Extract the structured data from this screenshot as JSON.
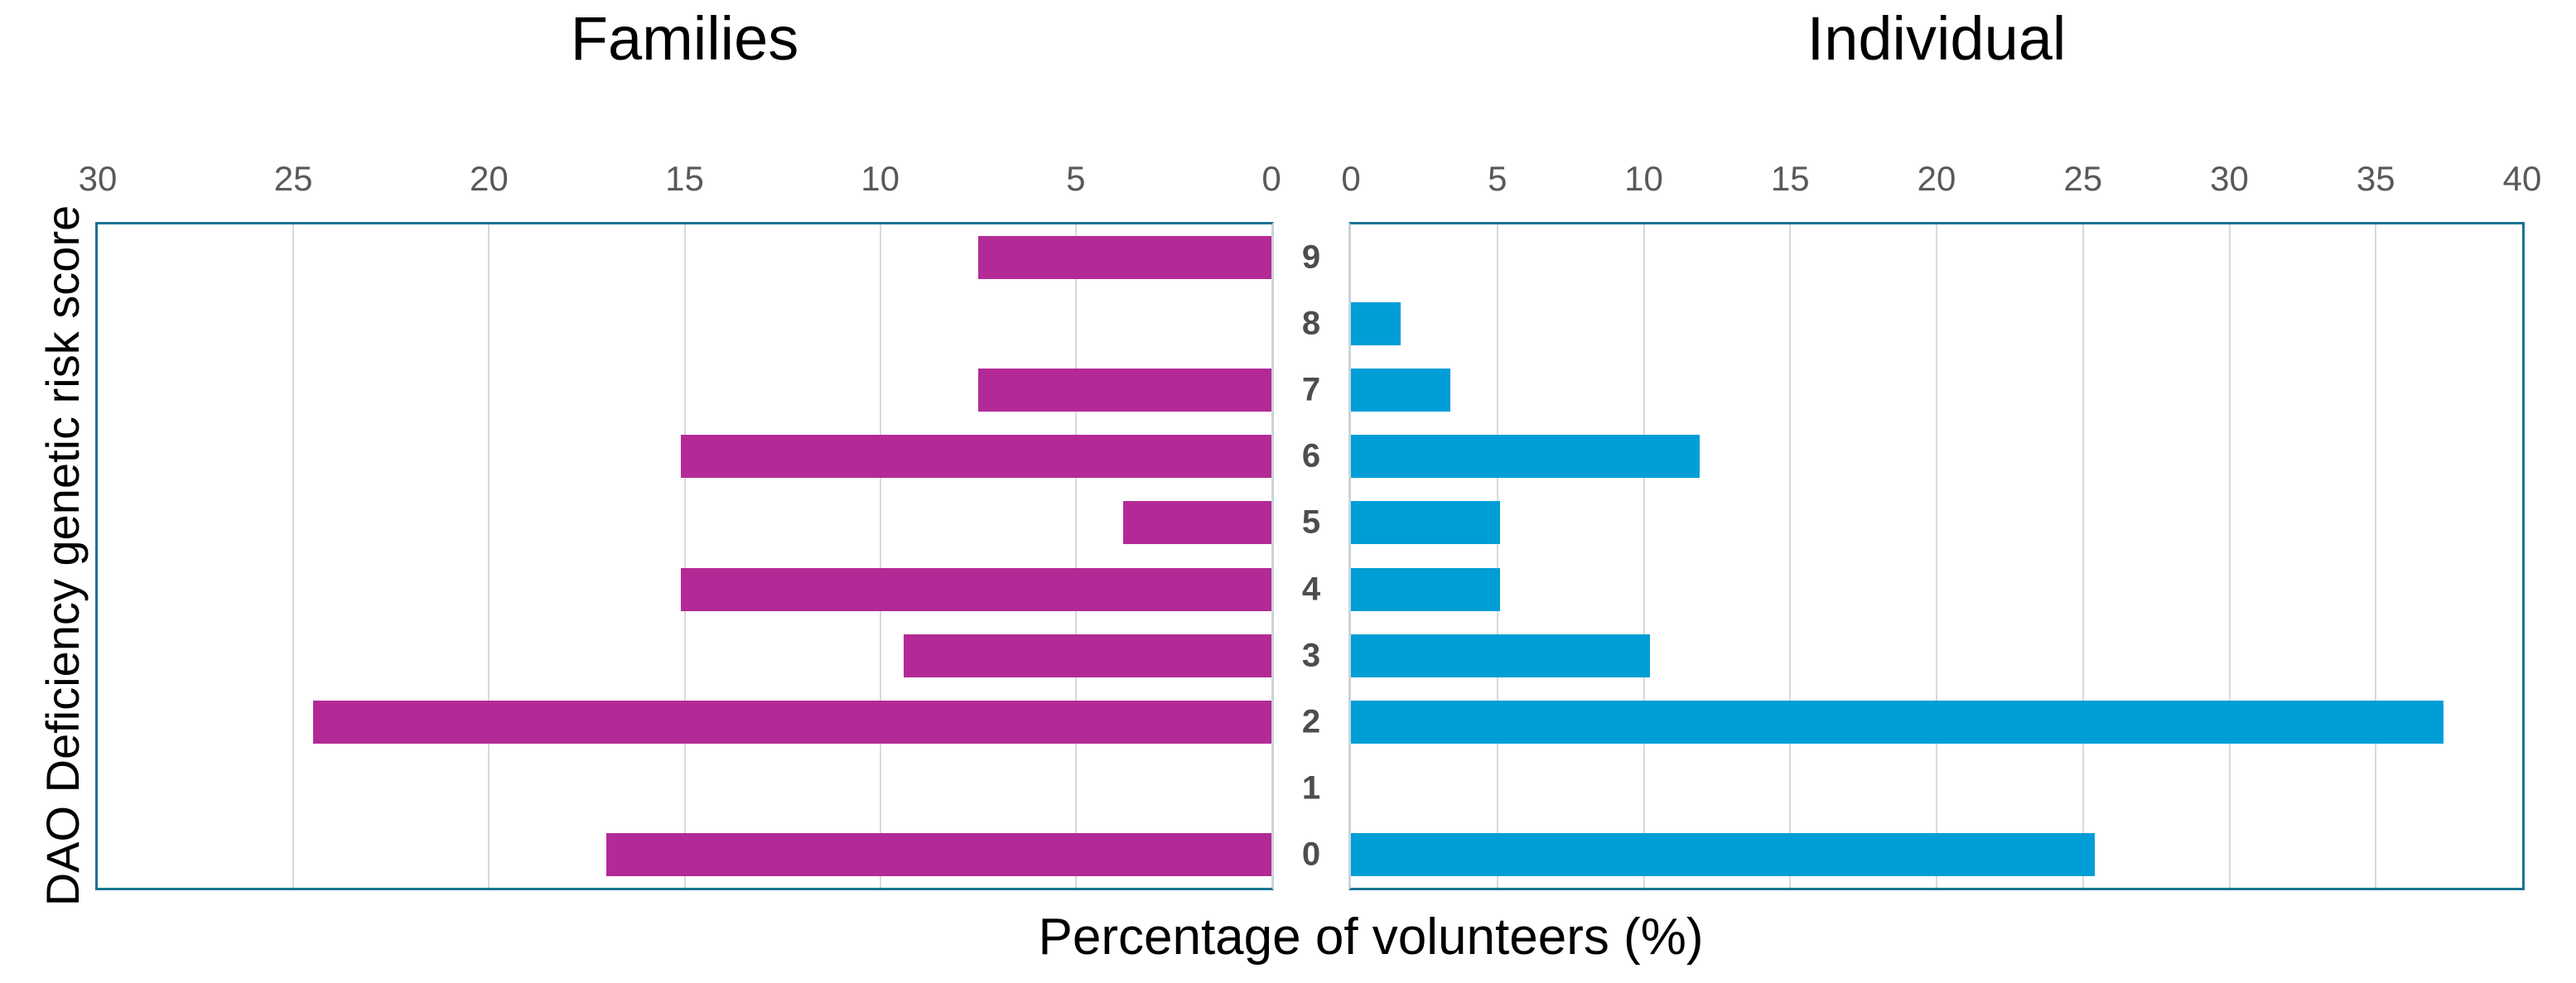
{
  "chart_data": {
    "type": "bar",
    "variant": "butterfly-horizontal",
    "title_left": "Families",
    "title_right": "Individual",
    "xlabel": "Percentage of volunteers (%)",
    "ylabel": "DAO Deficiency genetic risk score",
    "categories_top_to_bottom": [
      "9",
      "8",
      "7",
      "6",
      "5",
      "4",
      "3",
      "2",
      "1",
      "0"
    ],
    "series": [
      {
        "name": "Families",
        "side": "left",
        "color": "#B32A96",
        "axis_min": 0,
        "axis_max": 30,
        "axis_reversed": true,
        "ticks": [
          30,
          25,
          20,
          15,
          10,
          5,
          0
        ],
        "values_top_to_bottom": [
          7.5,
          0,
          7.5,
          15.1,
          3.8,
          15.1,
          9.4,
          24.5,
          0,
          17.0
        ]
      },
      {
        "name": "Individual",
        "side": "right",
        "color": "#009ED6",
        "axis_min": 0,
        "axis_max": 40,
        "axis_reversed": false,
        "ticks": [
          0,
          5,
          10,
          15,
          20,
          25,
          30,
          35,
          40
        ],
        "values_top_to_bottom": [
          0,
          1.7,
          3.4,
          11.9,
          5.1,
          5.1,
          10.2,
          37.3,
          0,
          25.4
        ]
      }
    ],
    "grid": true,
    "legend_position": "none",
    "plot_border_color": "#1A7391",
    "gridline_color": "#D9D9D9",
    "tick_label_color": "#595959",
    "category_label_color": "#4D4D4D"
  }
}
